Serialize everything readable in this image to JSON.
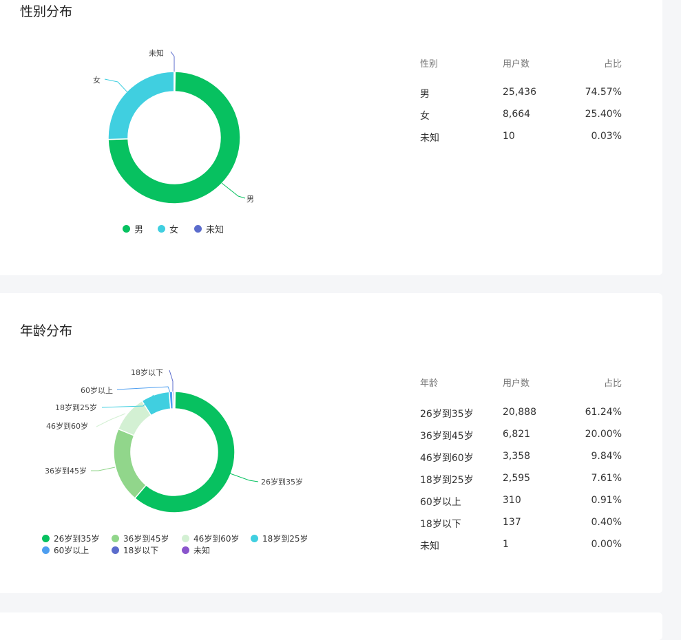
{
  "gender_section": {
    "title": "性别分布",
    "table": {
      "headers": [
        "性别",
        "用户数",
        "占比"
      ],
      "rows": [
        [
          "男",
          "25,436",
          "74.57%"
        ],
        [
          "女",
          "8,664",
          "25.40%"
        ],
        [
          "未知",
          "10",
          "0.03%"
        ]
      ]
    }
  },
  "age_section": {
    "title": "年龄分布",
    "table": {
      "headers": [
        "年龄",
        "用户数",
        "占比"
      ],
      "rows": [
        [
          "26岁到35岁",
          "20,888",
          "61.24%"
        ],
        [
          "36岁到45岁",
          "6,821",
          "20.00%"
        ],
        [
          "46岁到60岁",
          "3,358",
          "9.84%"
        ],
        [
          "18岁到25岁",
          "2,595",
          "7.61%"
        ],
        [
          "60岁以上",
          "310",
          "0.91%"
        ],
        [
          "18岁以下",
          "137",
          "0.40%"
        ],
        [
          "未知",
          "1",
          "0.00%"
        ]
      ]
    }
  },
  "chart_data": [
    {
      "type": "pie",
      "variant": "donut",
      "title": "性别分布",
      "categories": [
        "男",
        "女",
        "未知"
      ],
      "values": [
        25436,
        8664,
        10
      ],
      "colors": [
        "#07c160",
        "#40cfe0",
        "#5b6ccc"
      ],
      "legend_position": "bottom"
    },
    {
      "type": "pie",
      "variant": "donut",
      "title": "年龄分布",
      "categories": [
        "26岁到35岁",
        "36岁到45岁",
        "46岁到60岁",
        "18岁到25岁",
        "60岁以上",
        "18岁以下",
        "未知"
      ],
      "values": [
        20888,
        6821,
        3358,
        2595,
        310,
        137,
        1
      ],
      "colors": [
        "#07c160",
        "#91d68b",
        "#d3f0d3",
        "#40cfe0",
        "#4d9ef0",
        "#5b6ccc",
        "#8a55cc"
      ],
      "legend_position": "bottom"
    }
  ]
}
